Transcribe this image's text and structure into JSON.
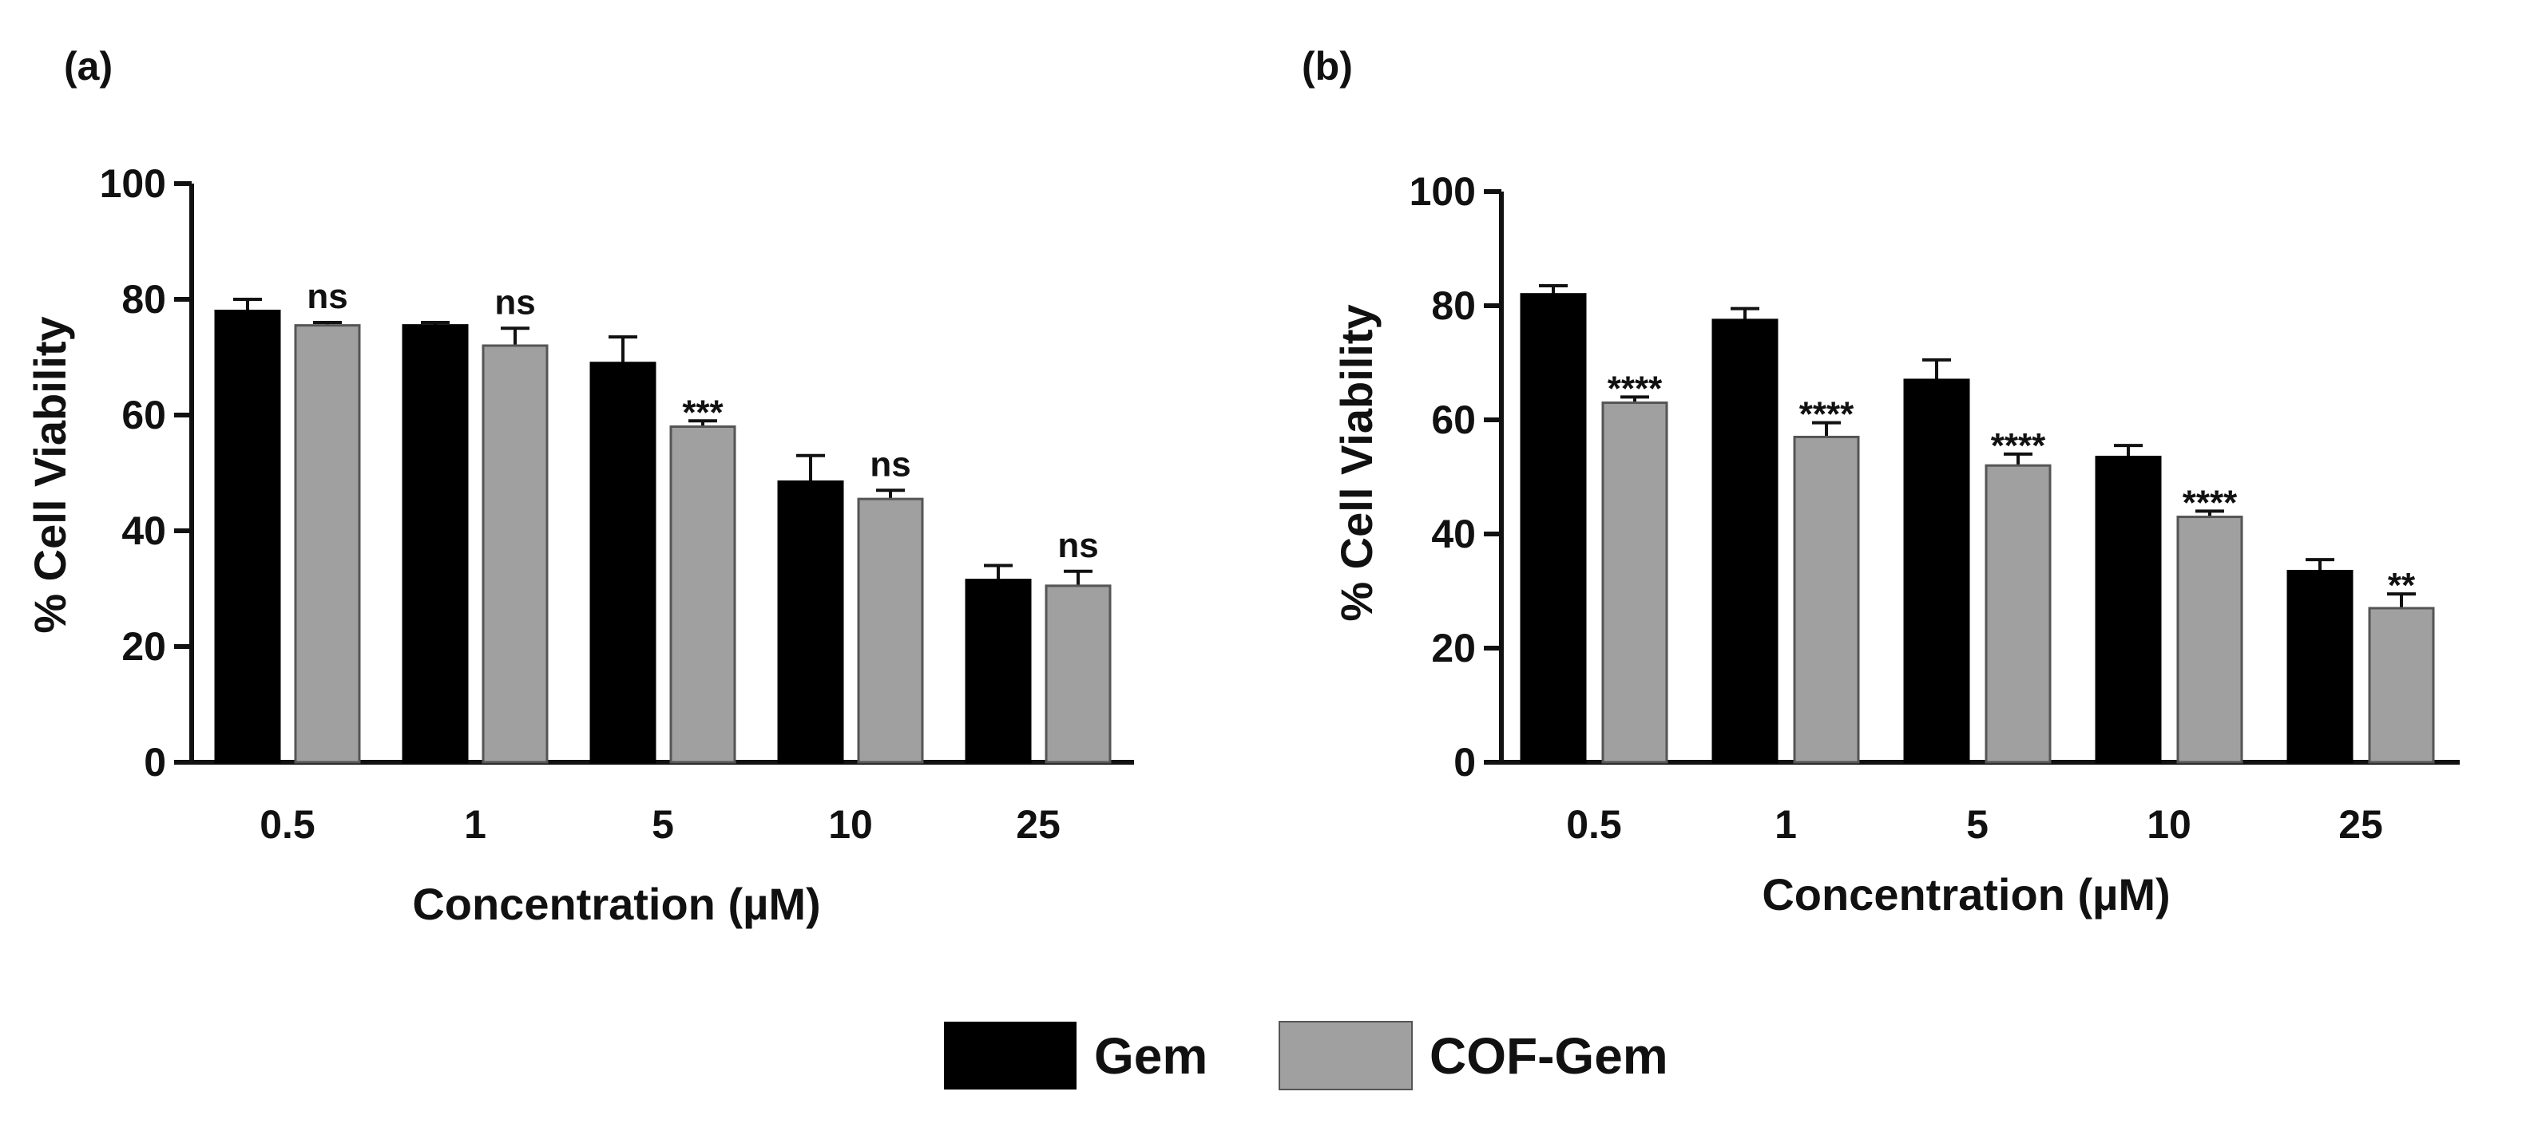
{
  "colors": {
    "gem": "#000000",
    "cof_gem": "#a0a0a0",
    "axis": "#111111"
  },
  "legend": {
    "items": [
      "Gem",
      "COF-Gem"
    ]
  },
  "chart_data": [
    {
      "panel_label": "(a)",
      "type": "bar",
      "categories": [
        "0.5",
        "1",
        "5",
        "10",
        "25"
      ],
      "series": [
        {
          "name": "Gem",
          "values": [
            78,
            75.5,
            69,
            48.5,
            31.5
          ],
          "errors": [
            2,
            0.5,
            4.5,
            4.5,
            2.5
          ]
        },
        {
          "name": "COF-Gem",
          "values": [
            75.5,
            72,
            58,
            45.5,
            30.5
          ],
          "errors": [
            0.5,
            3,
            1,
            1.5,
            2.5
          ]
        }
      ],
      "significance": [
        "ns",
        "ns",
        "***",
        "ns",
        "ns"
      ],
      "xlabel": "Concentration (µM)",
      "ylabel": "% Cell Viability",
      "ylim": [
        0,
        100
      ],
      "yticks": [
        "0",
        "20",
        "40",
        "60",
        "80",
        "100"
      ]
    },
    {
      "panel_label": "(b)",
      "type": "bar",
      "categories": [
        "0.5",
        "1",
        "5",
        "10",
        "25"
      ],
      "series": [
        {
          "name": "Gem",
          "values": [
            82,
            77.5,
            67,
            53.5,
            33.5
          ],
          "errors": [
            1.5,
            2,
            3.5,
            2,
            2
          ]
        },
        {
          "name": "COF-Gem",
          "values": [
            63,
            57,
            52,
            43,
            27
          ],
          "errors": [
            1,
            2.5,
            2,
            1,
            2.5
          ]
        }
      ],
      "significance": [
        "****",
        "****",
        "****",
        "****",
        "**"
      ],
      "xlabel": "Concentration (µM)",
      "ylabel": "% Cell Viability",
      "ylim": [
        0,
        100
      ],
      "yticks": [
        "0",
        "20",
        "40",
        "60",
        "80",
        "100"
      ]
    }
  ]
}
